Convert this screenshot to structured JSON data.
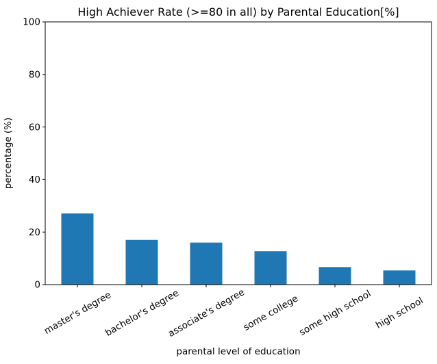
{
  "chart_data": {
    "type": "bar",
    "title": "High Achiever Rate (>=80 in all) by Parental Education[%]",
    "xlabel": "parental level of education",
    "ylabel": "percentage (%)",
    "categories": [
      "master's degree",
      "bachelor's degree",
      "associate's degree",
      "some college",
      "some high school",
      "high school"
    ],
    "values": [
      27.1,
      17.0,
      16.0,
      12.7,
      6.7,
      5.4
    ],
    "ylim": [
      0,
      100
    ],
    "yticks": [
      0,
      20,
      40,
      60,
      80,
      100
    ],
    "bar_color": "#1f77b4",
    "axis_color": "#000000",
    "text_color": "#000000",
    "background_color": "#ffffff",
    "grid": false,
    "legend": "none",
    "x_tick_rotation_deg": 30
  }
}
